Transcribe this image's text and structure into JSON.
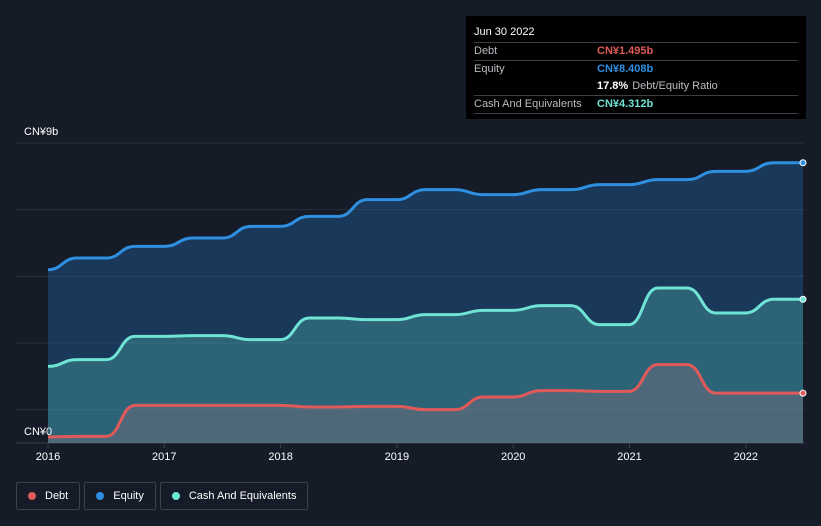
{
  "tooltip": {
    "date": "Jun 30 2022",
    "debt_label": "Debt",
    "debt_value": "CN¥1.495b",
    "equity_label": "Equity",
    "equity_value": "CN¥8.408b",
    "ratio_value": "17.8%",
    "ratio_label": "Debt/Equity Ratio",
    "cash_label": "Cash And Equivalents",
    "cash_value": "CN¥4.312b"
  },
  "colors": {
    "debt": "#e05a5a",
    "equity": "#2f8fe0",
    "cash": "#6fe3d4",
    "background": "#151b27"
  },
  "legend": [
    {
      "label": "Debt",
      "color": "#e05a5a"
    },
    {
      "label": "Equity",
      "color": "#2f8fe0"
    },
    {
      "label": "Cash And Equivalents",
      "color": "#6fe3d4"
    }
  ],
  "chart_data": {
    "type": "area",
    "y_top_label": "CN¥9b",
    "y_bottom_label": "CN¥0",
    "ylim": [
      0,
      9
    ],
    "xlim": [
      2016.0,
      2022.5
    ],
    "x_ticks": [
      "2016",
      "2017",
      "2018",
      "2019",
      "2020",
      "2021",
      "2022"
    ],
    "grid": true,
    "legend_position": "bottom-left",
    "series": [
      {
        "name": "Equity",
        "points": [
          [
            2016.0,
            5.2
          ],
          [
            2016.25,
            5.55
          ],
          [
            2016.5,
            5.55
          ],
          [
            2016.75,
            5.9
          ],
          [
            2017.0,
            5.9
          ],
          [
            2017.25,
            6.15
          ],
          [
            2017.5,
            6.15
          ],
          [
            2017.75,
            6.5
          ],
          [
            2018.0,
            6.5
          ],
          [
            2018.25,
            6.8
          ],
          [
            2018.5,
            6.8
          ],
          [
            2018.75,
            7.3
          ],
          [
            2019.0,
            7.3
          ],
          [
            2019.25,
            7.6
          ],
          [
            2019.5,
            7.6
          ],
          [
            2019.75,
            7.45
          ],
          [
            2020.0,
            7.45
          ],
          [
            2020.25,
            7.6
          ],
          [
            2020.5,
            7.6
          ],
          [
            2020.75,
            7.75
          ],
          [
            2021.0,
            7.75
          ],
          [
            2021.25,
            7.9
          ],
          [
            2021.5,
            7.9
          ],
          [
            2021.75,
            8.15
          ],
          [
            2022.0,
            8.15
          ],
          [
            2022.25,
            8.408
          ],
          [
            2022.5,
            8.408
          ]
        ]
      },
      {
        "name": "Cash And Equivalents",
        "points": [
          [
            2016.0,
            2.3
          ],
          [
            2016.25,
            2.5
          ],
          [
            2016.5,
            2.5
          ],
          [
            2016.75,
            3.2
          ],
          [
            2017.0,
            3.2
          ],
          [
            2017.25,
            3.22
          ],
          [
            2017.5,
            3.22
          ],
          [
            2017.75,
            3.1
          ],
          [
            2018.0,
            3.1
          ],
          [
            2018.25,
            3.75
          ],
          [
            2018.5,
            3.75
          ],
          [
            2018.75,
            3.7
          ],
          [
            2019.0,
            3.7
          ],
          [
            2019.25,
            3.85
          ],
          [
            2019.5,
            3.85
          ],
          [
            2019.75,
            3.98
          ],
          [
            2020.0,
            3.98
          ],
          [
            2020.25,
            4.12
          ],
          [
            2020.5,
            4.12
          ],
          [
            2020.75,
            3.55
          ],
          [
            2021.0,
            3.55
          ],
          [
            2021.25,
            4.65
          ],
          [
            2021.5,
            4.65
          ],
          [
            2021.75,
            3.9
          ],
          [
            2022.0,
            3.9
          ],
          [
            2022.25,
            4.312
          ],
          [
            2022.5,
            4.312
          ]
        ]
      },
      {
        "name": "Debt",
        "points": [
          [
            2016.0,
            0.18
          ],
          [
            2016.25,
            0.2
          ],
          [
            2016.5,
            0.2
          ],
          [
            2016.75,
            1.13
          ],
          [
            2017.0,
            1.13
          ],
          [
            2017.25,
            1.13
          ],
          [
            2017.5,
            1.13
          ],
          [
            2017.75,
            1.13
          ],
          [
            2018.0,
            1.13
          ],
          [
            2018.25,
            1.08
          ],
          [
            2018.5,
            1.08
          ],
          [
            2018.75,
            1.1
          ],
          [
            2019.0,
            1.1
          ],
          [
            2019.25,
            1.0
          ],
          [
            2019.5,
            1.0
          ],
          [
            2019.75,
            1.38
          ],
          [
            2020.0,
            1.38
          ],
          [
            2020.25,
            1.57
          ],
          [
            2020.5,
            1.57
          ],
          [
            2020.75,
            1.55
          ],
          [
            2021.0,
            1.55
          ],
          [
            2021.25,
            2.35
          ],
          [
            2021.5,
            2.35
          ],
          [
            2021.75,
            1.495
          ],
          [
            2022.0,
            1.495
          ],
          [
            2022.25,
            1.495
          ],
          [
            2022.5,
            1.495
          ]
        ]
      }
    ]
  }
}
